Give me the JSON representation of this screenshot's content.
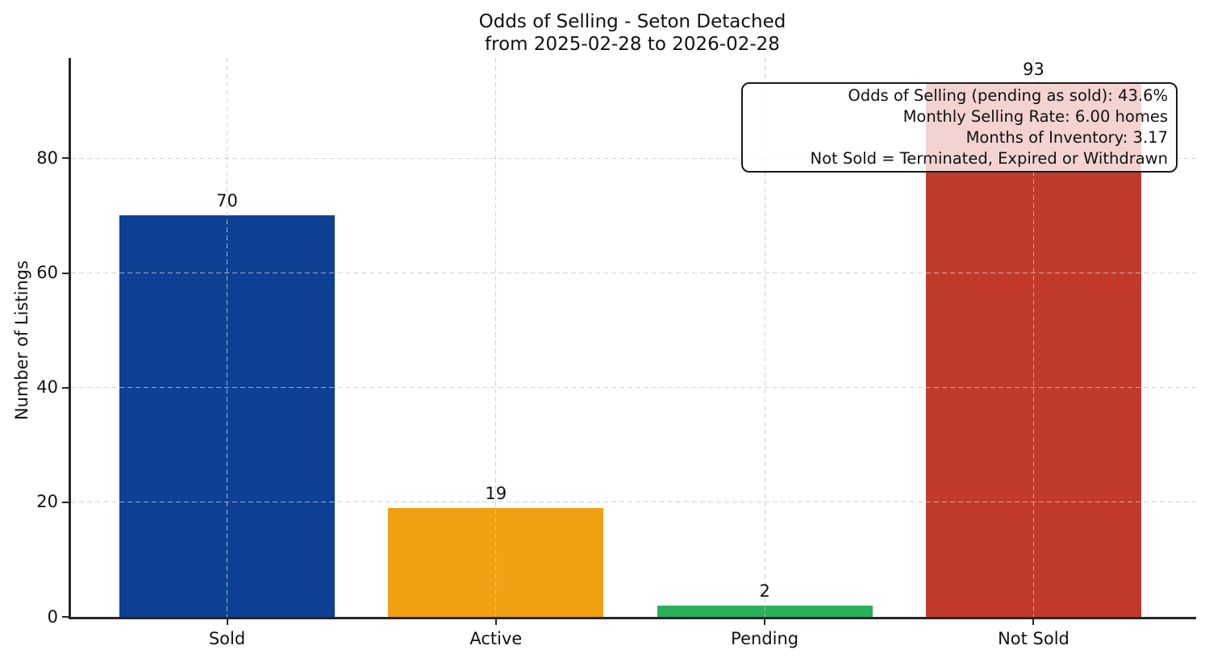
{
  "chart_data": {
    "type": "bar",
    "title": "Odds of Selling - Seton Detached",
    "subtitle": "from 2025-02-28 to 2026-02-28",
    "categories": [
      "Sold",
      "Active",
      "Pending",
      "Not Sold"
    ],
    "values": [
      70,
      19,
      2,
      93
    ],
    "bar_colors": [
      "#0e4094",
      "#f0a113",
      "#2ab05a",
      "#c23a2b"
    ],
    "xlabel": "",
    "ylabel": "Number of Listings",
    "ylim": [
      0,
      97.5
    ],
    "yticks": [
      0,
      20,
      40,
      60,
      80
    ],
    "grid": {
      "style": "dashed",
      "axes": "both",
      "drawn_over_bars": true
    },
    "value_labels_shown": true,
    "colors": {
      "axis": "#262626",
      "grid": "#c7c7c7",
      "text": "#111111",
      "background": "#ffffff"
    },
    "annotation": {
      "position": "top-right",
      "align": "right",
      "lines": [
        "Odds of Selling (pending as sold): 43.6%",
        "Monthly Selling Rate: 6.00 homes",
        "Months of Inventory: 3.17",
        "Not Sold = Terminated, Expired or Withdrawn"
      ]
    }
  }
}
